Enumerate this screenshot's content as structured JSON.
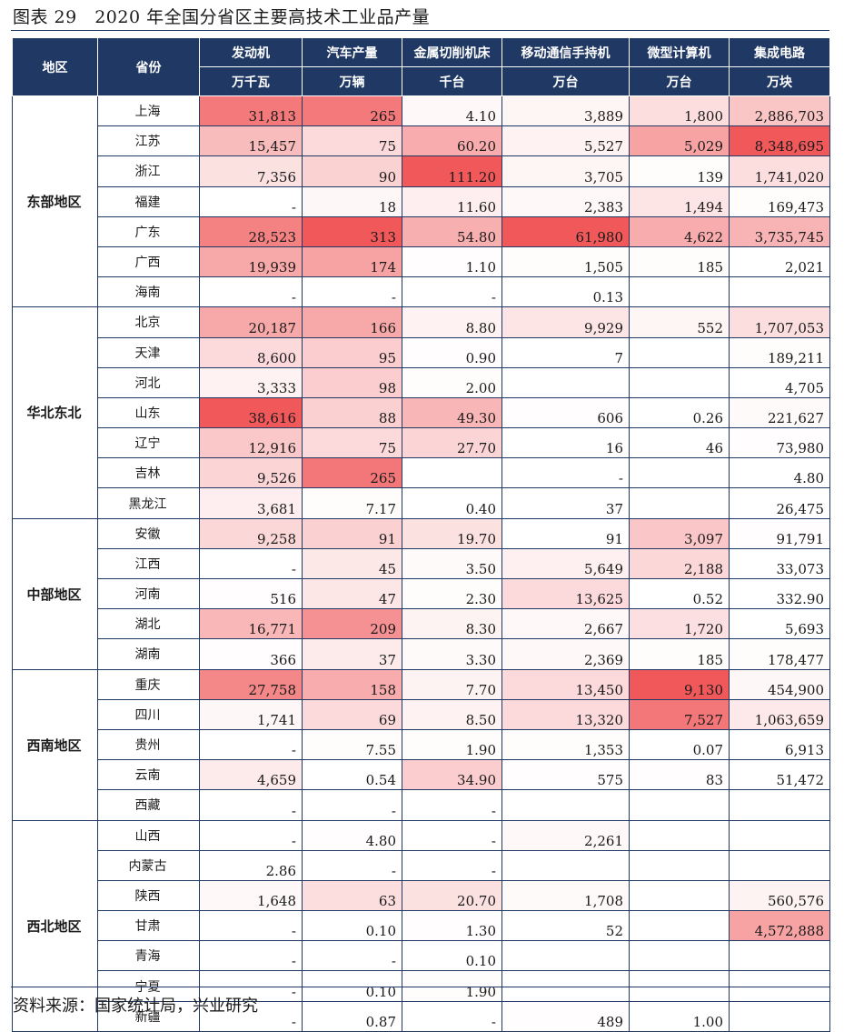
{
  "title": "图表 29　2020 年全国分省区主要高技术工业品产量",
  "source": "资料来源：国家统计局，兴业研究",
  "heat_colors": {
    "high": "#f0585a",
    "low": "#ffffff"
  },
  "headers": {
    "region": "地区",
    "province": "省份",
    "products": [
      {
        "name": "发动机",
        "unit": "万千瓦"
      },
      {
        "name": "汽车产量",
        "unit": "万辆"
      },
      {
        "name": "金属切削机床",
        "unit": "千台"
      },
      {
        "name": "移动通信手持机",
        "unit": "万台"
      },
      {
        "name": "微型计算机",
        "unit": "万台"
      },
      {
        "name": "集成电路",
        "unit": "万块"
      }
    ]
  },
  "regions": [
    {
      "name": "东部地区",
      "rows": [
        {
          "province": "上海",
          "values": [
            "31,813",
            "265",
            "4.10",
            "3,889",
            "1,800",
            "2,886,703"
          ],
          "heat": [
            0.8,
            0.8,
            0.04,
            0.06,
            0.2,
            0.35
          ]
        },
        {
          "province": "江苏",
          "values": [
            "15,457",
            "75",
            "60.20",
            "5,527",
            "5,029",
            "8,348,695"
          ],
          "heat": [
            0.4,
            0.22,
            0.5,
            0.08,
            0.55,
            1.0
          ]
        },
        {
          "province": "浙江",
          "values": [
            "7,356",
            "90",
            "111.20",
            "3,705",
            "139",
            "1,741,020"
          ],
          "heat": [
            0.18,
            0.27,
            1.0,
            0.06,
            0.02,
            0.2
          ]
        },
        {
          "province": "福建",
          "values": [
            "-",
            "18",
            "11.60",
            "2,383",
            "1,494",
            "169,473"
          ],
          "heat": [
            0,
            0.05,
            0.1,
            0.04,
            0.16,
            0.02
          ]
        },
        {
          "province": "广东",
          "values": [
            "28,523",
            "313",
            "54.80",
            "61,980",
            "4,622",
            "3,735,745"
          ],
          "heat": [
            0.75,
            1.0,
            0.48,
            1.0,
            0.5,
            0.45
          ]
        },
        {
          "province": "广西",
          "values": [
            "19,939",
            "174",
            "1.10",
            "1,505",
            "185",
            "2,021"
          ],
          "heat": [
            0.52,
            0.55,
            0.01,
            0.02,
            0.02,
            0
          ]
        },
        {
          "province": "海南",
          "values": [
            "-",
            "-",
            "-",
            "0.13",
            "",
            ""
          ],
          "heat": [
            0,
            0,
            0,
            0,
            0,
            0
          ]
        }
      ]
    },
    {
      "name": "华北东北",
      "rows": [
        {
          "province": "北京",
          "values": [
            "20,187",
            "166",
            "8.80",
            "9,929",
            "552",
            "1,707,053"
          ],
          "heat": [
            0.52,
            0.52,
            0.08,
            0.16,
            0.06,
            0.2
          ]
        },
        {
          "province": "天津",
          "values": [
            "8,600",
            "95",
            "0.90",
            "7",
            "",
            "189,211"
          ],
          "heat": [
            0.22,
            0.3,
            0.01,
            0,
            0,
            0.02
          ]
        },
        {
          "province": "河北",
          "values": [
            "3,333",
            "98",
            "2.00",
            "",
            "",
            "4,705"
          ],
          "heat": [
            0.08,
            0.3,
            0.02,
            0,
            0,
            0
          ]
        },
        {
          "province": "山东",
          "values": [
            "38,616",
            "88",
            "49.30",
            "606",
            "0.26",
            "221,627"
          ],
          "heat": [
            1.0,
            0.28,
            0.44,
            0.01,
            0,
            0.03
          ]
        },
        {
          "province": "辽宁",
          "values": [
            "12,916",
            "75",
            "27.70",
            "16",
            "46",
            "73,980"
          ],
          "heat": [
            0.33,
            0.22,
            0.25,
            0,
            0,
            0.01
          ]
        },
        {
          "province": "吉林",
          "values": [
            "9,526",
            "265",
            "",
            "-",
            "",
            "4.80"
          ],
          "heat": [
            0.25,
            0.82,
            0,
            0,
            0,
            0
          ]
        },
        {
          "province": "黑龙江",
          "values": [
            "3,681",
            "7.17",
            "0.40",
            "37",
            "",
            "26,475"
          ],
          "heat": [
            0.1,
            0.02,
            0,
            0,
            0,
            0
          ]
        }
      ]
    },
    {
      "name": "中部地区",
      "rows": [
        {
          "province": "安徽",
          "values": [
            "9,258",
            "91",
            "19.70",
            "91",
            "3,097",
            "91,791"
          ],
          "heat": [
            0.24,
            0.28,
            0.18,
            0,
            0.34,
            0.01
          ]
        },
        {
          "province": "江西",
          "values": [
            "-",
            "45",
            "3.50",
            "5,649",
            "2,188",
            "33,073"
          ],
          "heat": [
            0,
            0.14,
            0.03,
            0.09,
            0.24,
            0
          ]
        },
        {
          "province": "河南",
          "values": [
            "516",
            "47",
            "2.30",
            "13,625",
            "0.52",
            "332.90"
          ],
          "heat": [
            0.01,
            0.15,
            0.02,
            0.22,
            0,
            0
          ]
        },
        {
          "province": "湖北",
          "values": [
            "16,771",
            "209",
            "8.30",
            "2,667",
            "1,720",
            "5,693"
          ],
          "heat": [
            0.43,
            0.66,
            0.07,
            0.04,
            0.19,
            0
          ]
        },
        {
          "province": "湖南",
          "values": [
            "366",
            "37",
            "3.30",
            "2,369",
            "185",
            "178,477"
          ],
          "heat": [
            0.01,
            0.12,
            0.03,
            0.04,
            0.02,
            0.02
          ]
        }
      ]
    },
    {
      "name": "西南地区",
      "rows": [
        {
          "province": "重庆",
          "values": [
            "27,758",
            "158",
            "7.70",
            "13,450",
            "9,130",
            "454,900"
          ],
          "heat": [
            0.72,
            0.5,
            0.07,
            0.22,
            1.0,
            0.05
          ]
        },
        {
          "province": "四川",
          "values": [
            "1,741",
            "69",
            "8.50",
            "13,320",
            "7,527",
            "1,063,659"
          ],
          "heat": [
            0.05,
            0.22,
            0.08,
            0.22,
            0.82,
            0.13
          ]
        },
        {
          "province": "贵州",
          "values": [
            "-",
            "7.55",
            "1.90",
            "1,353",
            "0.07",
            "6,913"
          ],
          "heat": [
            0,
            0.02,
            0.02,
            0.02,
            0,
            0
          ]
        },
        {
          "province": "云南",
          "values": [
            "4,659",
            "0.54",
            "34.90",
            "575",
            "83",
            "51,472"
          ],
          "heat": [
            0.12,
            0,
            0.3,
            0.01,
            0.01,
            0
          ]
        },
        {
          "province": "西藏",
          "values": [
            "-",
            "-",
            "-",
            "",
            "",
            ""
          ],
          "heat": [
            0,
            0,
            0,
            0,
            0,
            0
          ]
        }
      ]
    },
    {
      "name": "西北地区",
      "rows": [
        {
          "province": "山西",
          "values": [
            "-",
            "4.80",
            "-",
            "2,261",
            "",
            ""
          ],
          "heat": [
            0,
            0.01,
            0,
            0.04,
            0,
            0
          ]
        },
        {
          "province": "内蒙古",
          "values": [
            "2.86",
            "-",
            "-",
            "",
            "",
            ""
          ],
          "heat": [
            0,
            0,
            0,
            0,
            0,
            0
          ]
        },
        {
          "province": "陕西",
          "values": [
            "1,648",
            "63",
            "20.70",
            "1,708",
            "",
            "560,576"
          ],
          "heat": [
            0.04,
            0.2,
            0.18,
            0.03,
            0,
            0.07
          ]
        },
        {
          "province": "甘肃",
          "values": [
            "-",
            "0.10",
            "1.30",
            "52",
            "",
            "4,572,888"
          ],
          "heat": [
            0,
            0,
            0.01,
            0,
            0,
            0.55
          ]
        },
        {
          "province": "青海",
          "values": [
            "-",
            "-",
            "0.10",
            "",
            "",
            ""
          ],
          "heat": [
            0,
            0,
            0,
            0,
            0,
            0
          ]
        },
        {
          "province": "宁夏",
          "values": [
            "-",
            "0.10",
            "1.90",
            "",
            "",
            ""
          ],
          "heat": [
            0,
            0,
            0.02,
            0,
            0,
            0
          ]
        },
        {
          "province": "新疆",
          "values": [
            "-",
            "0.87",
            "-",
            "489",
            "1.00",
            ""
          ],
          "heat": [
            0,
            0,
            0,
            0.01,
            0,
            0
          ]
        }
      ]
    }
  ]
}
